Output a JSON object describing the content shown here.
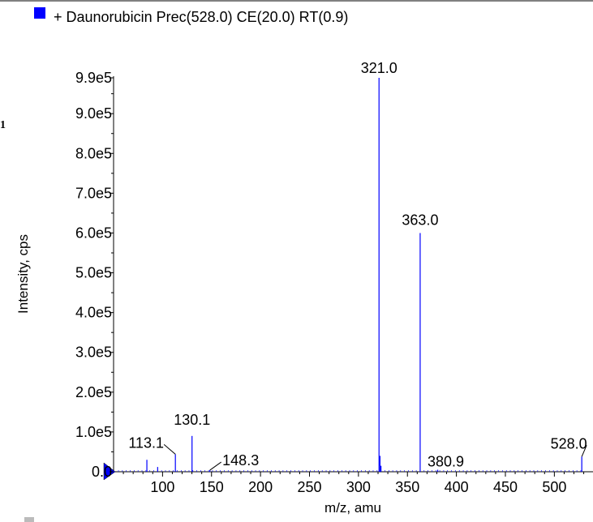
{
  "page": {
    "side_mark": "1"
  },
  "chart_data": {
    "type": "bar",
    "legend": {
      "label": "+ Daunorubicin Prec(528.0) CE(20.0) RT(0.9)",
      "color": "#0000ff",
      "placement": "top-left"
    },
    "xlabel": "m/z, amu",
    "ylabel": "Intensity, cps",
    "xlim": [
      50,
      532
    ],
    "ylim": [
      0,
      990000
    ],
    "x_ticks": [
      100,
      150,
      200,
      250,
      300,
      350,
      400,
      450,
      500
    ],
    "x_tick_labels": [
      "100",
      "150",
      "200",
      "250",
      "300",
      "350",
      "400",
      "450",
      "500"
    ],
    "y_ticks": [
      0,
      100000,
      200000,
      300000,
      400000,
      500000,
      600000,
      700000,
      800000,
      900000,
      990000
    ],
    "y_tick_labels": [
      "0.0",
      "1.0e5",
      "2.0e5",
      "3.0e5",
      "4.0e5",
      "5.0e5",
      "6.0e5",
      "7.0e5",
      "8.0e5",
      "9.0e5",
      "9.9e5"
    ],
    "peaks": [
      {
        "mz": 84.0,
        "intensity": 30000
      },
      {
        "mz": 95.0,
        "intensity": 12000
      },
      {
        "mz": 113.1,
        "intensity": 44000
      },
      {
        "mz": 130.1,
        "intensity": 90000
      },
      {
        "mz": 148.3,
        "intensity": 4000
      },
      {
        "mz": 321.0,
        "intensity": 990000
      },
      {
        "mz": 322.0,
        "intensity": 40000
      },
      {
        "mz": 323.0,
        "intensity": 15000
      },
      {
        "mz": 363.0,
        "intensity": 600000
      },
      {
        "mz": 380.9,
        "intensity": 5000
      },
      {
        "mz": 528.0,
        "intensity": 38000
      }
    ],
    "peak_labels": [
      {
        "mz": 113.1,
        "text": "113.1"
      },
      {
        "mz": 130.1,
        "text": "130.1"
      },
      {
        "mz": 148.3,
        "text": "148.3"
      },
      {
        "mz": 321.0,
        "text": "321.0"
      },
      {
        "mz": 363.0,
        "text": "363.0"
      },
      {
        "mz": 380.9,
        "text": "380.9"
      },
      {
        "mz": 528.0,
        "text": "528.0"
      }
    ],
    "grid": false,
    "series_color": "#0000ff"
  }
}
